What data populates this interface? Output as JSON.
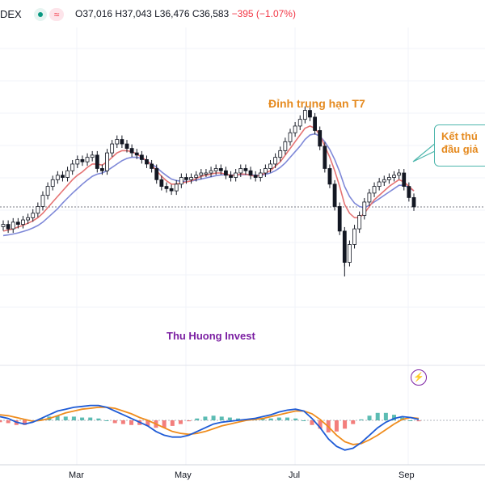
{
  "header": {
    "symbol": "DEX",
    "open": "O37,016",
    "high": "H37,043",
    "low": "L36,476",
    "close": "C36,583",
    "change": "−395 (−1.07%)"
  },
  "annotations": {
    "peak": "Đỉnh trung hạn T7",
    "callout_line1": "Kết thú",
    "callout_line2": "đầu giả"
  },
  "watermark": "Thu Huong Invest",
  "icons": [
    "lightning-icon",
    "status-dot-icon",
    "approx-icon"
  ],
  "colors": {
    "up": "#089981",
    "down": "#f23645",
    "ma_fast": "#e57373",
    "ma_slow": "#7e88d8",
    "macd": "#1e5bd6",
    "signal": "#ef8c1d",
    "hist_up": "#26a69a",
    "hist_down": "#ef5350"
  },
  "chart_data": [
    {
      "type": "candlestick",
      "x_tick_labels": [
        "Mar",
        "May",
        "Jul",
        "Sep"
      ],
      "reference_line": 36583,
      "series": [
        {
          "name": "price",
          "values": [
            35800,
            35600,
            35900,
            35800,
            36000,
            36100,
            36300,
            36600,
            37100,
            37500,
            37800,
            38000,
            37900,
            38200,
            38500,
            38700,
            38600,
            38800,
            38900,
            38300,
            38200,
            39000,
            39400,
            39600,
            39400,
            39200,
            39000,
            38900,
            38700,
            38500,
            38300,
            37800,
            37500,
            37400,
            37300,
            37600,
            37900,
            37800,
            37900,
            38000,
            38100,
            38100,
            38200,
            38300,
            38200,
            38000,
            37900,
            38100,
            38300,
            38200,
            38000,
            37900,
            38100,
            38300,
            38500,
            38800,
            39100,
            39500,
            39900,
            40200,
            40500,
            40900,
            40600,
            40000,
            39300,
            38300,
            37600,
            36600,
            35500,
            34100,
            34900,
            35600,
            36200,
            36800,
            37200,
            37500,
            37700,
            37800,
            37900,
            38000,
            38100,
            37500,
            37000,
            36583
          ]
        },
        {
          "name": "ma_fast",
          "values": [
            35500,
            35550,
            35600,
            35680,
            35760,
            35850,
            35960,
            36100,
            36300,
            36550,
            36800,
            37050,
            37300,
            37550,
            37800,
            38000,
            38150,
            38350,
            38500,
            38500,
            38450,
            38600,
            38800,
            39000,
            39100,
            39100,
            39050,
            38950,
            38800,
            38650,
            38450,
            38200,
            37950,
            37750,
            37600,
            37600,
            37650,
            37700,
            37750,
            37850,
            37950,
            38000,
            38050,
            38100,
            38100,
            38050,
            38000,
            38000,
            38050,
            38050,
            38000,
            37950,
            38000,
            38100,
            38200,
            38400,
            38600,
            38900,
            39200,
            39500,
            39800,
            40100,
            40200,
            40100,
            39800,
            39300,
            38800,
            38200,
            37500,
            36700,
            36300,
            36100,
            36100,
            36300,
            36600,
            36900,
            37100,
            37300,
            37500,
            37650,
            37800,
            37700,
            37500,
            37300
          ]
        },
        {
          "name": "ma_slow",
          "values": [
            35300,
            35330,
            35370,
            35420,
            35480,
            35550,
            35640,
            35750,
            35900,
            36100,
            36300,
            36500,
            36750,
            36980,
            37200,
            37400,
            37600,
            37780,
            37950,
            38050,
            38100,
            38200,
            38350,
            38500,
            38650,
            38750,
            38800,
            38800,
            38750,
            38650,
            38500,
            38350,
            38150,
            37980,
            37830,
            37760,
            37730,
            37720,
            37740,
            37780,
            37830,
            37880,
            37930,
            37980,
            38010,
            38020,
            38010,
            38010,
            38020,
            38030,
            38020,
            38000,
            38000,
            38040,
            38100,
            38200,
            38350,
            38550,
            38800,
            39050,
            39300,
            39600,
            39800,
            39850,
            39750,
            39500,
            39150,
            38700,
            38150,
            37500,
            37050,
            36750,
            36600,
            36550,
            36650,
            36800,
            36950,
            37100,
            37250,
            37400,
            37550,
            37550,
            37450,
            37300
          ]
        }
      ]
    },
    {
      "type": "line",
      "series": [
        {
          "name": "macd",
          "values": [
            0.2,
            0.1,
            -0.1,
            -0.2,
            -0.1,
            0.1,
            0.3,
            0.5,
            0.6,
            0.7,
            0.75,
            0.8,
            0.8,
            0.7,
            0.5,
            0.3,
            0.1,
            -0.1,
            -0.3,
            -0.6,
            -0.8,
            -0.9,
            -0.9,
            -0.8,
            -0.6,
            -0.4,
            -0.2,
            -0.1,
            -0.05,
            0,
            0.05,
            0.1,
            0.2,
            0.3,
            0.45,
            0.55,
            0.6,
            0.5,
            0.1,
            -0.4,
            -1.0,
            -1.4,
            -1.6,
            -1.5,
            -1.2,
            -0.8,
            -0.4,
            -0.1,
            0.1,
            0.2,
            0.15,
            0.05
          ]
        },
        {
          "name": "signal",
          "values": [
            0.3,
            0.25,
            0.15,
            0.05,
            -0.05,
            0,
            0.1,
            0.25,
            0.4,
            0.5,
            0.6,
            0.65,
            0.7,
            0.7,
            0.65,
            0.5,
            0.35,
            0.15,
            0,
            -0.2,
            -0.4,
            -0.6,
            -0.7,
            -0.75,
            -0.7,
            -0.6,
            -0.45,
            -0.3,
            -0.2,
            -0.1,
            0,
            0.05,
            0.1,
            0.2,
            0.3,
            0.4,
            0.5,
            0.5,
            0.35,
            0.05,
            -0.35,
            -0.8,
            -1.15,
            -1.3,
            -1.25,
            -1.05,
            -0.8,
            -0.5,
            -0.2,
            0.05,
            0.15,
            0.1
          ]
        }
      ]
    }
  ]
}
